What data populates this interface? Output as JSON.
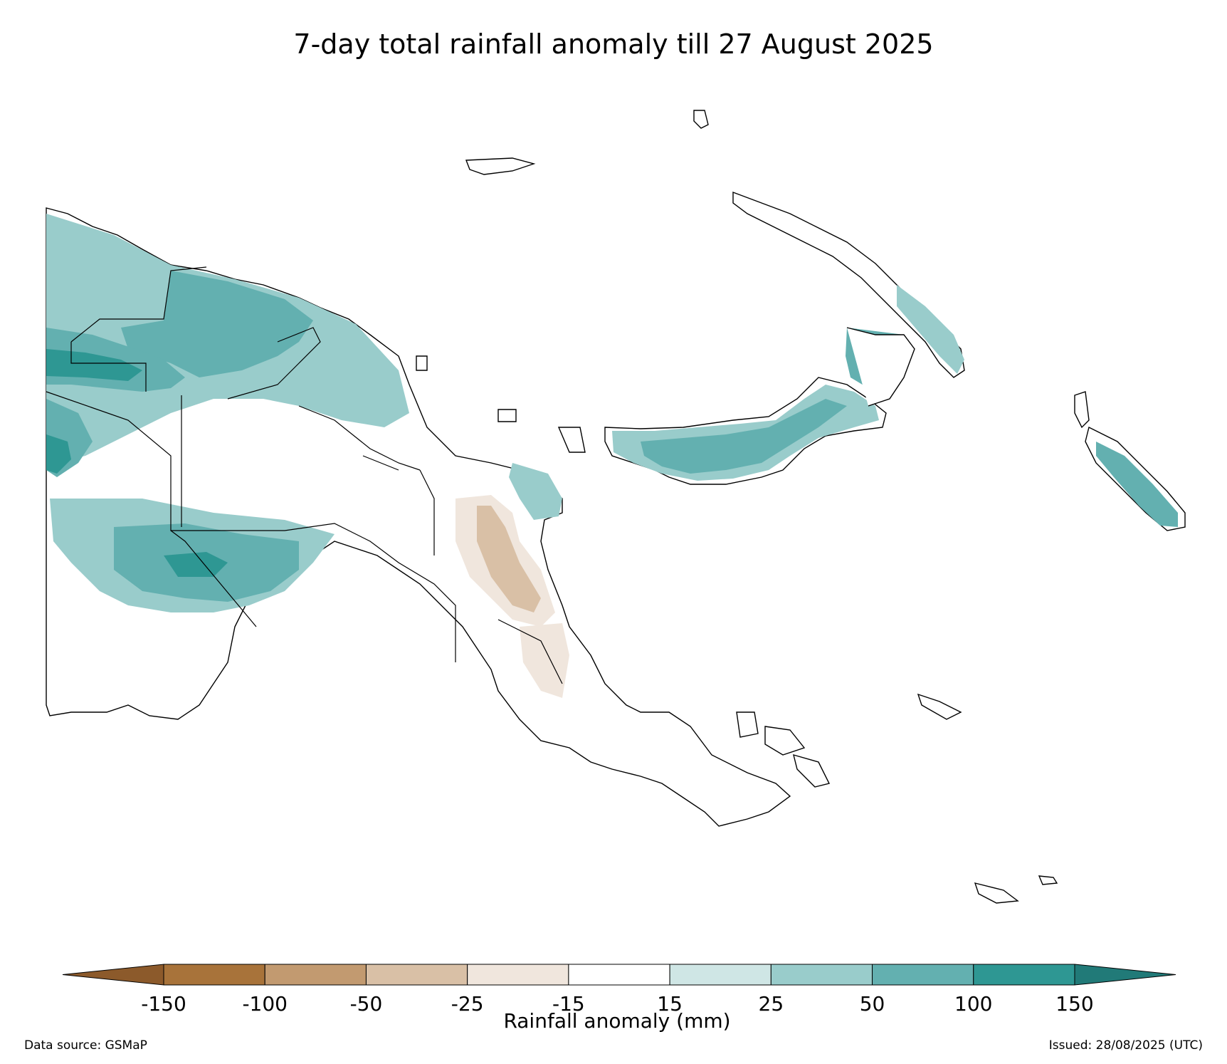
{
  "title": "7-day total rainfall anomaly till 27 August 2025",
  "footer": {
    "source": "Data source: GSMaP",
    "issued": "Issued: 28/08/2025 (UTC)"
  },
  "colorbar": {
    "label": "Rainfall anomaly (mm)",
    "ticks": [
      "-150",
      "-100",
      "-50",
      "-25",
      "-15",
      "15",
      "25",
      "50",
      "100",
      "150"
    ],
    "bins": [
      {
        "range": "<-150",
        "color": "#8c5a2b"
      },
      {
        "range": "-150 to -100",
        "color": "#a8733a"
      },
      {
        "range": "-100 to -50",
        "color": "#c29a70"
      },
      {
        "range": "-50 to -25",
        "color": "#d9c0a6"
      },
      {
        "range": "-25 to -15",
        "color": "#f0e6dd"
      },
      {
        "range": "-15 to 15",
        "color": "#ffffff"
      },
      {
        "range": "15 to 25",
        "color": "#cfe6e5"
      },
      {
        "range": "25 to 50",
        "color": "#99cccb"
      },
      {
        "range": "50 to 100",
        "color": "#63b0b0"
      },
      {
        "range": "100 to 150",
        "color": "#2e9793"
      },
      {
        "range": ">150",
        "color": "#217a78"
      }
    ]
  }
}
